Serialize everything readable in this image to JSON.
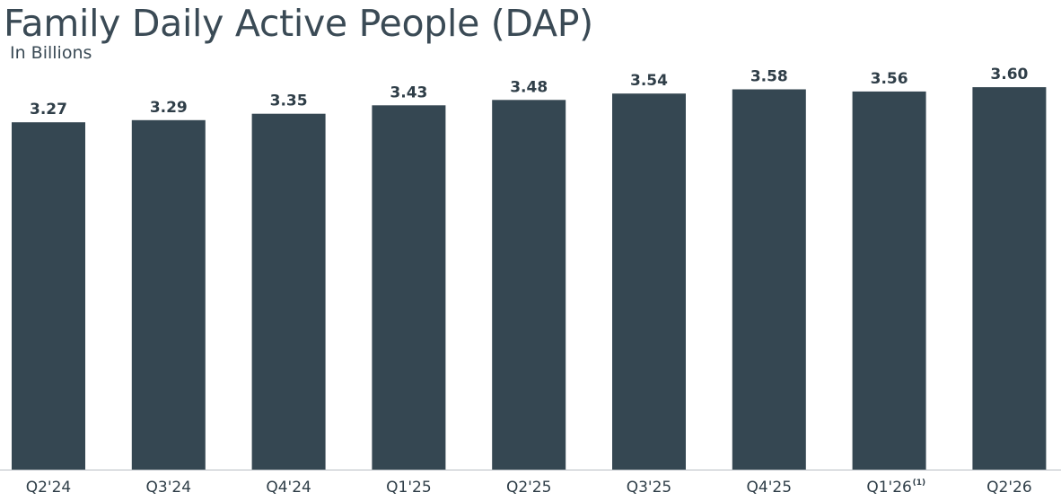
{
  "chart_data": {
    "type": "bar",
    "title": "Family Daily Active People (DAP)",
    "subtitle": "In Billions",
    "xlabel": "",
    "ylabel": "",
    "categories": [
      "Q2'24",
      "Q3'24",
      "Q4'24",
      "Q1'25",
      "Q2'25",
      "Q3'25",
      "Q4'25",
      "Q1'26",
      "Q2'26"
    ],
    "category_footnotes": [
      "",
      "",
      "",
      "",
      "",
      "",
      "",
      "(1)",
      ""
    ],
    "values": [
      3.27,
      3.29,
      3.35,
      3.43,
      3.48,
      3.54,
      3.58,
      3.56,
      3.6
    ],
    "value_labels": [
      "3.27",
      "3.29",
      "3.35",
      "3.43",
      "3.48",
      "3.54",
      "3.58",
      "3.56",
      "3.60"
    ],
    "ylim": [
      0,
      4.1
    ],
    "grid": false,
    "legend": "none",
    "colors": {
      "bar": "#354752",
      "baseline": "#b8bec3",
      "text": "#2f3e48"
    }
  }
}
